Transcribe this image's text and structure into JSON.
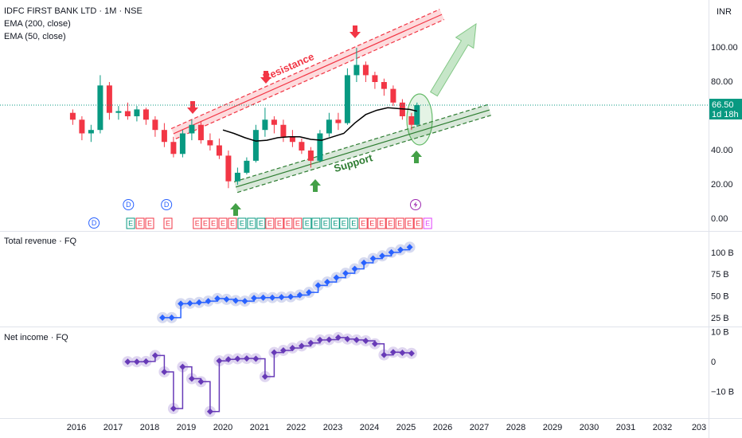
{
  "chart_data": [
    {
      "type": "candlestick",
      "title": "IDFC FIRST BANK LTD · 1M · NSE",
      "currency": "INR",
      "indicators": [
        "EMA (200, close)",
        "EMA (50, close)"
      ],
      "up_color": "#089981",
      "down_color": "#f23645",
      "candles": {
        "x": [
          2015.9,
          2016.15,
          2016.4,
          2016.65,
          2016.9,
          2017.15,
          2017.4,
          2017.65,
          2017.9,
          2018.15,
          2018.4,
          2018.65,
          2018.9,
          2019.15,
          2019.4,
          2019.65,
          2019.9,
          2020.15,
          2020.4,
          2020.65,
          2020.9,
          2021.15,
          2021.4,
          2021.65,
          2021.9,
          2022.15,
          2022.4,
          2022.65,
          2022.9,
          2023.15,
          2023.4,
          2023.65,
          2023.9,
          2024.15,
          2024.4,
          2024.65,
          2024.9,
          2025.15,
          2025.3
        ],
        "open": [
          62,
          58,
          50,
          52,
          78,
          62,
          63,
          60,
          64,
          58,
          52,
          45,
          38,
          50,
          55,
          46,
          43,
          37,
          22,
          27,
          34,
          52,
          58,
          55,
          48,
          45,
          40,
          34,
          50,
          58,
          56,
          84,
          90,
          84,
          80,
          76,
          68,
          60,
          55
        ],
        "high": [
          64,
          60,
          55,
          84,
          80,
          66,
          68,
          66,
          65,
          60,
          56,
          48,
          52,
          58,
          57,
          50,
          47,
          40,
          30,
          36,
          55,
          65,
          60,
          58,
          52,
          47,
          42,
          52,
          62,
          62,
          88,
          100,
          92,
          86,
          82,
          78,
          70,
          62,
          68
        ],
        "low": [
          55,
          46,
          45,
          50,
          58,
          58,
          58,
          57,
          55,
          48,
          42,
          36,
          36,
          46,
          44,
          40,
          35,
          18,
          20,
          26,
          33,
          48,
          50,
          45,
          42,
          38,
          30,
          33,
          48,
          52,
          55,
          80,
          80,
          76,
          72,
          66,
          58,
          52,
          54
        ],
        "close": [
          58,
          50,
          52,
          78,
          62,
          63,
          60,
          64,
          58,
          52,
          45,
          38,
          50,
          55,
          46,
          43,
          37,
          22,
          27,
          34,
          52,
          58,
          55,
          48,
          45,
          40,
          34,
          50,
          58,
          56,
          84,
          90,
          84,
          80,
          76,
          68,
          60,
          55,
          66.5
        ]
      },
      "ema_line": {
        "color": "#000000",
        "x": [
          2020.0,
          2020.3,
          2020.6,
          2020.9,
          2021.2,
          2021.5,
          2021.8,
          2022.1,
          2022.4,
          2022.7,
          2023.0,
          2023.3,
          2023.6,
          2023.9,
          2024.2,
          2024.5,
          2024.8,
          2025.1,
          2025.3
        ],
        "values": [
          52,
          50,
          47.5,
          45.5,
          46,
          47.5,
          48,
          48,
          46.5,
          46,
          48,
          50,
          56,
          61,
          63.5,
          65,
          64.5,
          64,
          63
        ]
      },
      "channels": [
        {
          "label": "Resistance",
          "color": "#f23645",
          "x": [
            2018.65,
            2025.98
          ],
          "y": [
            49.8,
            119.5
          ]
        },
        {
          "label": "Support",
          "color": "#2e7d32",
          "x": [
            2020.35,
            2027.28
          ],
          "y": [
            18.6,
            63.7
          ]
        }
      ],
      "price_label": {
        "value": 66.5,
        "label": "66.50"
      },
      "countdown": "1d 18h",
      "dividends": {
        "x": [
          2016.48,
          2017.42,
          2018.46
        ],
        "labels": [
          "D",
          "D",
          "D"
        ]
      },
      "earnings": {
        "x": [
          2017.48,
          2017.74,
          2018.0,
          2018.5,
          2019.3,
          2019.52,
          2019.74,
          2020.0,
          2020.26,
          2020.52,
          2020.78,
          2021.04,
          2021.28,
          2021.54,
          2021.78,
          2022.04,
          2022.3,
          2022.54,
          2022.8,
          2023.07,
          2023.3,
          2023.57,
          2023.83,
          2024.07,
          2024.33,
          2024.57,
          2024.83,
          2025.09,
          2025.33,
          2025.59
        ],
        "labels": [
          "E",
          "E",
          "E",
          "E",
          "E",
          "E",
          "E",
          "E",
          "E",
          "E",
          "E",
          "E",
          "E",
          "E",
          "E",
          "E",
          "E",
          "E",
          "E",
          "E",
          "E",
          "E",
          "E",
          "E",
          "E",
          "E",
          "E",
          "E",
          "E",
          "E"
        ],
        "colors": [
          "#089981",
          "#f23645",
          "#f23645",
          "#f23645",
          "#f23645",
          "#f23645",
          "#f23645",
          "#f23645",
          "#f23645",
          "#089981",
          "#089981",
          "#089981",
          "#f23645",
          "#f23645",
          "#f23645",
          "#f23645",
          "#089981",
          "#089981",
          "#089981",
          "#089981",
          "#089981",
          "#089981",
          "#f23645",
          "#f23645",
          "#f23645",
          "#f23645",
          "#f23645",
          "#f23645",
          "#f23645",
          "#e040fb"
        ]
      },
      "xlim": [
        2013.913,
        2033.261
      ],
      "xticks": [
        2016,
        2017,
        2018,
        2019,
        2020,
        2021,
        2022,
        2023,
        2024,
        2025,
        2026,
        2027,
        2028,
        2029,
        2030,
        2031,
        2032,
        {
          "value": 2033,
          "label": "203"
        }
      ],
      "ylim": [
        -7,
        125.6
      ],
      "yticks": [
        {
          "value": 100,
          "label": "100.00"
        },
        {
          "value": 80,
          "label": "80.00"
        },
        {
          "value": 40,
          "label": "40.00"
        },
        {
          "value": 20,
          "label": "20.00"
        },
        {
          "value": 0,
          "label": "0.00"
        }
      ],
      "grid": false
    },
    {
      "type": "step",
      "title": "Total revenue · FQ",
      "color": "#2962ff",
      "halo": "#c5cae9",
      "x": [
        2018.35,
        2018.6,
        2018.85,
        2019.1,
        2019.35,
        2019.6,
        2019.85,
        2020.1,
        2020.35,
        2020.6,
        2020.85,
        2021.1,
        2021.35,
        2021.6,
        2021.85,
        2022.1,
        2022.35,
        2022.6,
        2022.85,
        2023.1,
        2023.35,
        2023.6,
        2023.85,
        2024.1,
        2024.35,
        2024.6,
        2024.85,
        2025.1
      ],
      "values": [
        26,
        26,
        42,
        42.5,
        43.5,
        45,
        48,
        47,
        45.5,
        45,
        48.5,
        49,
        49,
        49.5,
        50,
        52,
        55,
        63,
        67,
        72,
        77,
        82,
        89,
        94,
        97,
        101,
        104,
        107
      ],
      "ylim": [
        15.8,
        122.9
      ],
      "yticks": [
        {
          "value": 100,
          "label": "100 B"
        },
        {
          "value": 75,
          "label": "75 B"
        },
        {
          "value": 50,
          "label": "50 B"
        },
        {
          "value": 25,
          "label": "25 B"
        }
      ]
    },
    {
      "type": "step",
      "title": "Net income · FQ",
      "color": "#673ab7",
      "halo": "#d1c4e9",
      "x": [
        2017.4,
        2017.65,
        2017.9,
        2018.15,
        2018.4,
        2018.65,
        2018.9,
        2019.15,
        2019.4,
        2019.65,
        2019.9,
        2020.15,
        2020.4,
        2020.65,
        2020.9,
        2021.15,
        2021.4,
        2021.65,
        2021.9,
        2022.15,
        2022.4,
        2022.65,
        2022.9,
        2023.15,
        2023.4,
        2023.65,
        2023.9,
        2024.15,
        2024.4,
        2024.65,
        2024.9,
        2025.15
      ],
      "values": [
        0.2,
        0.2,
        0.3,
        2.3,
        -3.2,
        -15.5,
        -1.5,
        -5.5,
        -6.5,
        -16.5,
        0.5,
        1,
        1.2,
        1.3,
        1.2,
        -4.8,
        3.3,
        4,
        4.8,
        5.5,
        6.5,
        7.5,
        7.6,
        8.3,
        7.8,
        7.5,
        7.2,
        6.2,
        2.5,
        3.4,
        3.2,
        3.0
      ],
      "ylim": [
        -18.7,
        11.2
      ],
      "yticks": [
        {
          "value": 10,
          "label": "10 B"
        },
        0,
        {
          "value": -10,
          "label": "−10 B"
        }
      ]
    }
  ]
}
